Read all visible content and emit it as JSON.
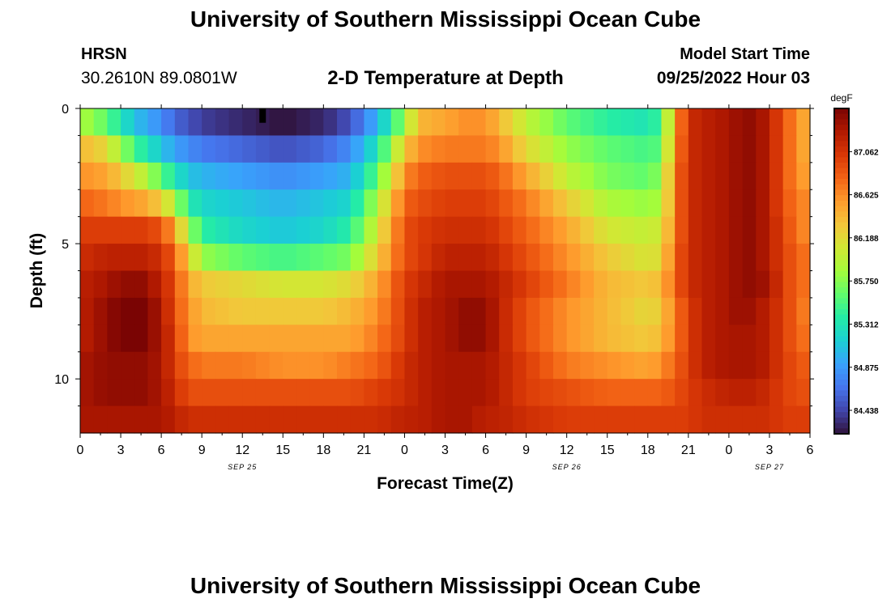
{
  "header": {
    "title": "University of Southern Mississippi Ocean Cube",
    "station_id": "HRSN",
    "coordinates": "30.2610N  89.0801W",
    "subtitle": "2-D Temperature at Depth",
    "model_start_label": "Model Start Time",
    "model_start_value": "09/25/2022 Hour 03"
  },
  "footer": {
    "title": "University of Southern Mississippi Ocean Cube"
  },
  "chart_data": {
    "type": "heatmap",
    "title": "2-D Temperature at Depth",
    "xlabel": "Forecast Time(Z)",
    "ylabel": "Depth (ft)",
    "x_hours_range": [
      0,
      54
    ],
    "y_range": [
      0,
      12
    ],
    "x_ticks": [
      {
        "hour": 0,
        "label": "0"
      },
      {
        "hour": 3,
        "label": "3"
      },
      {
        "hour": 6,
        "label": "6"
      },
      {
        "hour": 9,
        "label": "9"
      },
      {
        "hour": 12,
        "label": "12"
      },
      {
        "hour": 15,
        "label": "15"
      },
      {
        "hour": 18,
        "label": "18"
      },
      {
        "hour": 21,
        "label": "21"
      },
      {
        "hour": 24,
        "label": "0"
      },
      {
        "hour": 27,
        "label": "3"
      },
      {
        "hour": 30,
        "label": "6"
      },
      {
        "hour": 33,
        "label": "9"
      },
      {
        "hour": 36,
        "label": "12"
      },
      {
        "hour": 39,
        "label": "15"
      },
      {
        "hour": 42,
        "label": "18"
      },
      {
        "hour": 45,
        "label": "21"
      },
      {
        "hour": 48,
        "label": "0"
      },
      {
        "hour": 51,
        "label": "3"
      },
      {
        "hour": 54,
        "label": "6"
      }
    ],
    "date_labels": [
      {
        "hour": 12,
        "label": "SEP 25"
      },
      {
        "hour": 36,
        "label": "SEP 26"
      },
      {
        "hour": 51,
        "label": "SEP 27"
      }
    ],
    "y_ticks": [
      {
        "depth": 0,
        "label": "0"
      },
      {
        "depth": 5,
        "label": "5"
      },
      {
        "depth": 10,
        "label": "10"
      }
    ],
    "colorbar": {
      "unit": "degF",
      "min": 84.2,
      "max": 87.5,
      "ticks": [
        "87.062",
        "86.625",
        "86.188",
        "85.750",
        "85.312",
        "84.875",
        "84.438"
      ],
      "colors": [
        "#30123b",
        "#4145ab",
        "#4675ed",
        "#39a2fc",
        "#1bcfd4",
        "#24eca6",
        "#61fc6c",
        "#a4fc3b",
        "#d1e834",
        "#f3c63a",
        "#fe9b2d",
        "#f36315",
        "#d93806",
        "#b11901",
        "#7a0403"
      ]
    },
    "depth_rows": [
      0.5,
      1.5,
      2.5,
      3.5,
      4.5,
      5.5,
      6.5,
      7.5,
      8.5,
      9.5,
      10.5,
      11.5
    ],
    "anchor_hours": [
      0,
      2,
      3,
      4.5,
      6,
      7,
      8,
      9,
      12,
      15,
      18,
      20,
      22,
      24,
      25,
      27,
      28.5,
      30,
      31,
      33,
      36,
      39,
      42,
      43,
      44,
      45,
      46,
      48,
      49,
      50,
      51,
      52,
      53,
      54
    ],
    "anchor_rows": [
      [
        85.9,
        85.6,
        85.3,
        85.0,
        84.8,
        84.6,
        84.5,
        84.4,
        84.3,
        84.2,
        84.3,
        84.5,
        85.0,
        85.8,
        86.4,
        86.5,
        86.6,
        86.6,
        86.4,
        86.0,
        85.6,
        85.4,
        85.3,
        85.5,
        86.5,
        87.1,
        87.2,
        87.3,
        87.4,
        87.4,
        87.2,
        86.9,
        86.6,
        86.4
      ],
      [
        86.4,
        86.2,
        85.8,
        85.4,
        85.1,
        84.9,
        84.8,
        84.7,
        84.6,
        84.5,
        84.6,
        84.8,
        85.3,
        86.3,
        86.6,
        86.7,
        86.7,
        86.7,
        86.6,
        86.2,
        85.8,
        85.6,
        85.5,
        85.6,
        86.6,
        87.1,
        87.2,
        87.3,
        87.4,
        87.4,
        87.2,
        86.9,
        86.6,
        86.4
      ],
      [
        86.6,
        86.5,
        86.3,
        86.0,
        85.6,
        85.3,
        85.1,
        85.0,
        84.9,
        84.8,
        84.9,
        85.0,
        85.6,
        86.6,
        86.8,
        86.9,
        86.9,
        86.9,
        86.8,
        86.5,
        86.0,
        85.7,
        85.6,
        85.8,
        86.7,
        87.1,
        87.2,
        87.3,
        87.4,
        87.4,
        87.2,
        86.9,
        86.6,
        86.5
      ],
      [
        86.8,
        86.7,
        86.6,
        86.5,
        86.3,
        85.9,
        85.4,
        85.2,
        85.1,
        85.0,
        85.1,
        85.2,
        85.9,
        86.8,
        86.9,
        87.0,
        87.0,
        87.0,
        86.9,
        86.7,
        86.3,
        85.9,
        85.8,
        85.9,
        86.7,
        87.1,
        87.2,
        87.3,
        87.4,
        87.4,
        87.2,
        86.9,
        86.7,
        86.6
      ],
      [
        87.0,
        87.0,
        87.0,
        87.0,
        86.9,
        86.5,
        85.9,
        85.4,
        85.2,
        85.1,
        85.2,
        85.4,
        86.1,
        86.9,
        87.0,
        87.1,
        87.1,
        87.1,
        87.0,
        86.8,
        86.5,
        86.1,
        86.0,
        86.1,
        86.7,
        87.1,
        87.2,
        87.3,
        87.4,
        87.4,
        87.2,
        87.0,
        86.7,
        86.6
      ],
      [
        87.1,
        87.2,
        87.2,
        87.2,
        87.1,
        86.8,
        86.3,
        85.8,
        85.6,
        85.5,
        85.6,
        85.7,
        86.3,
        86.9,
        87.0,
        87.2,
        87.2,
        87.2,
        87.1,
        86.9,
        86.6,
        86.3,
        86.1,
        86.2,
        86.8,
        87.1,
        87.2,
        87.3,
        87.4,
        87.4,
        87.2,
        87.0,
        86.8,
        86.7
      ],
      [
        87.2,
        87.3,
        87.4,
        87.4,
        87.2,
        86.9,
        86.5,
        86.3,
        86.2,
        86.1,
        86.1,
        86.2,
        86.5,
        87.0,
        87.1,
        87.3,
        87.3,
        87.3,
        87.2,
        87.0,
        86.7,
        86.4,
        86.3,
        86.4,
        86.8,
        87.1,
        87.2,
        87.3,
        87.4,
        87.4,
        87.3,
        87.0,
        86.8,
        86.7
      ],
      [
        87.2,
        87.4,
        87.5,
        87.5,
        87.3,
        86.9,
        86.6,
        86.4,
        86.3,
        86.3,
        86.3,
        86.4,
        86.6,
        87.0,
        87.2,
        87.3,
        87.4,
        87.4,
        87.2,
        86.9,
        86.6,
        86.4,
        86.2,
        86.3,
        86.7,
        87.0,
        87.2,
        87.3,
        87.4,
        87.3,
        87.2,
        87.0,
        86.8,
        86.6
      ],
      [
        87.2,
        87.4,
        87.5,
        87.5,
        87.3,
        87.0,
        86.6,
        86.5,
        86.5,
        86.5,
        86.5,
        86.5,
        86.7,
        87.0,
        87.2,
        87.3,
        87.4,
        87.4,
        87.2,
        86.9,
        86.6,
        86.4,
        86.3,
        86.4,
        86.7,
        87.0,
        87.2,
        87.3,
        87.3,
        87.3,
        87.2,
        87.0,
        86.8,
        86.7
      ],
      [
        87.3,
        87.4,
        87.4,
        87.4,
        87.3,
        87.0,
        86.8,
        86.7,
        86.7,
        86.6,
        86.6,
        86.7,
        86.8,
        87.1,
        87.2,
        87.3,
        87.3,
        87.3,
        87.2,
        87.0,
        86.7,
        86.6,
        86.5,
        86.6,
        86.8,
        87.0,
        87.2,
        87.3,
        87.3,
        87.3,
        87.2,
        87.0,
        86.9,
        86.8
      ],
      [
        87.3,
        87.4,
        87.4,
        87.4,
        87.3,
        87.1,
        86.9,
        86.9,
        86.9,
        86.9,
        86.9,
        86.9,
        87.0,
        87.1,
        87.2,
        87.3,
        87.3,
        87.3,
        87.2,
        87.0,
        86.9,
        86.8,
        86.8,
        86.8,
        86.9,
        87.0,
        87.1,
        87.2,
        87.2,
        87.2,
        87.1,
        87.0,
        86.9,
        86.9
      ],
      [
        87.3,
        87.3,
        87.3,
        87.3,
        87.3,
        87.2,
        87.1,
        87.1,
        87.1,
        87.1,
        87.1,
        87.1,
        87.1,
        87.2,
        87.2,
        87.3,
        87.3,
        87.2,
        87.2,
        87.1,
        87.0,
        87.0,
        87.0,
        87.0,
        87.0,
        87.0,
        87.1,
        87.1,
        87.1,
        87.1,
        87.1,
        87.0,
        87.0,
        87.0
      ]
    ],
    "missing_cell": {
      "hour": 13.5,
      "depth": 0.5,
      "label": "no data"
    }
  }
}
